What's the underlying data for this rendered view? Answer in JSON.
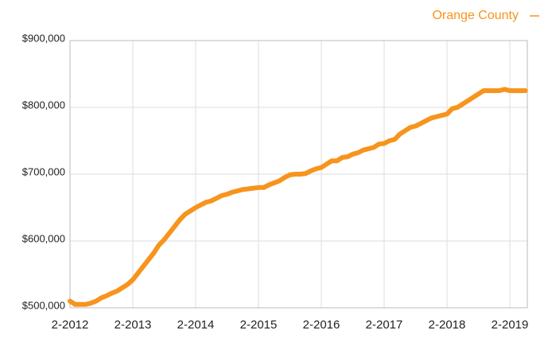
{
  "chart_data": {
    "type": "line",
    "categories": [
      "2-2012",
      null,
      null,
      null,
      null,
      null,
      null,
      null,
      null,
      null,
      null,
      null,
      "2-2013",
      null,
      null,
      null,
      null,
      null,
      null,
      null,
      null,
      null,
      null,
      null,
      "2-2014",
      null,
      null,
      null,
      null,
      null,
      null,
      null,
      null,
      null,
      null,
      null,
      "2-2015",
      null,
      null,
      null,
      null,
      null,
      null,
      null,
      null,
      null,
      null,
      null,
      "2-2016",
      null,
      null,
      null,
      null,
      null,
      null,
      null,
      null,
      null,
      null,
      null,
      "2-2017",
      null,
      null,
      null,
      null,
      null,
      null,
      null,
      null,
      null,
      null,
      null,
      "2-2018",
      null,
      null,
      null,
      null,
      null,
      null,
      null,
      null,
      null,
      null,
      null,
      "2-2019",
      null,
      null,
      null
    ],
    "series": [
      {
        "name": "Orange County",
        "color": "#f7941d",
        "values": [
          510000,
          505000,
          505000,
          505000,
          507000,
          510000,
          515000,
          518000,
          522000,
          525000,
          530000,
          535000,
          542000,
          552000,
          562000,
          572000,
          582000,
          594000,
          602000,
          612000,
          622000,
          632000,
          640000,
          645000,
          650000,
          654000,
          658000,
          660000,
          664000,
          668000,
          670000,
          673000,
          675000,
          677000,
          678000,
          679000,
          680000,
          680000,
          684000,
          687000,
          690000,
          695000,
          699000,
          700000,
          700000,
          701000,
          705000,
          708000,
          710000,
          715000,
          720000,
          720000,
          725000,
          726000,
          730000,
          732000,
          736000,
          738000,
          740000,
          745000,
          746000,
          750000,
          752000,
          760000,
          765000,
          770000,
          772000,
          776000,
          780000,
          784000,
          786000,
          788000,
          790000,
          798000,
          800000,
          805000,
          810000,
          815000,
          820000,
          825000,
          825000,
          825000,
          825000,
          827000,
          825000,
          825000,
          825000,
          825000
        ]
      }
    ],
    "ylim": [
      500000,
      900000
    ],
    "yticks": [
      {
        "value": 500000,
        "label": "$500,000"
      },
      {
        "value": 600000,
        "label": "$600,000"
      },
      {
        "value": 700000,
        "label": "$700,000"
      },
      {
        "value": 800000,
        "label": "$800,000"
      },
      {
        "value": 900000,
        "label": "$900,000"
      }
    ],
    "grid": true,
    "legend": "top-right"
  }
}
